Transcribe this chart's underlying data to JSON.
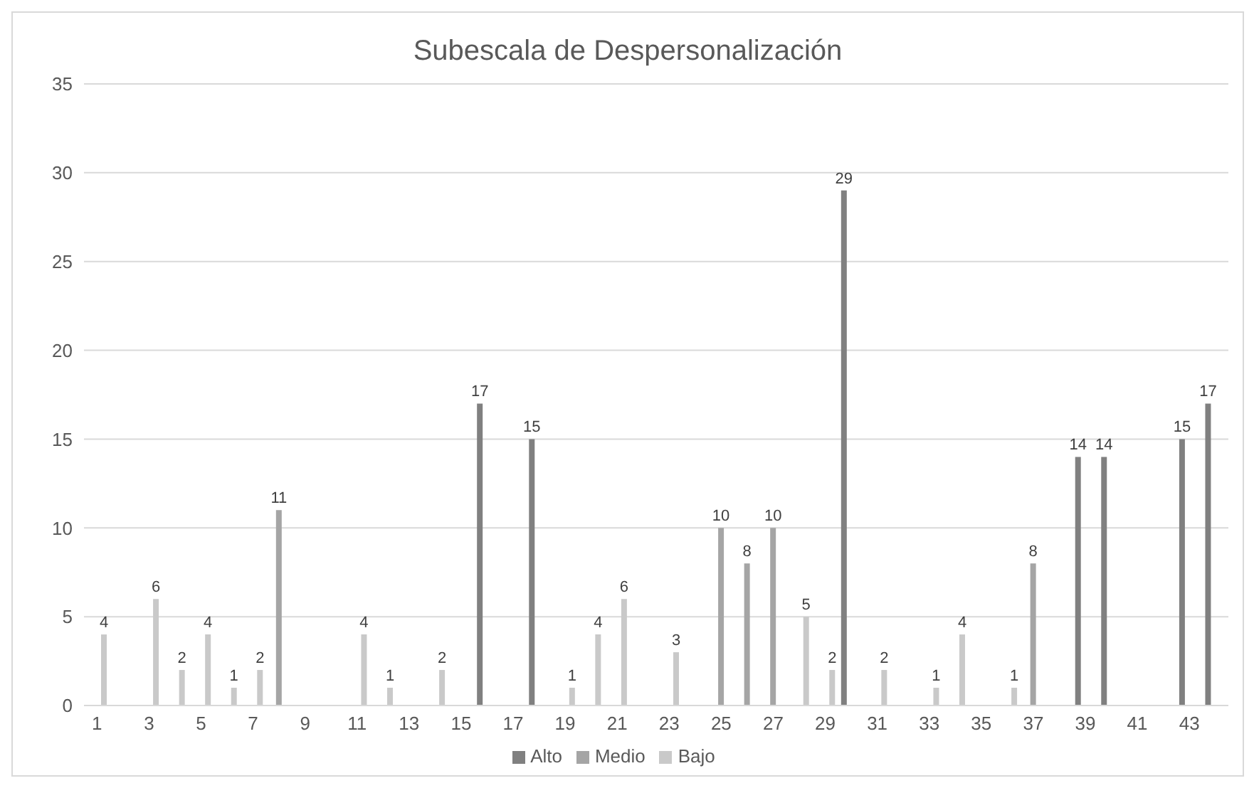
{
  "chart_data": {
    "type": "bar",
    "title": "Subescala de Despersonalización",
    "x": [
      1,
      2,
      3,
      4,
      5,
      6,
      7,
      8,
      9,
      10,
      11,
      12,
      13,
      14,
      15,
      16,
      17,
      18,
      19,
      20,
      21,
      22,
      23,
      24,
      25,
      26,
      27,
      28,
      29,
      30,
      31,
      32,
      33,
      34,
      35,
      36,
      37,
      38,
      39,
      40,
      41,
      42,
      43,
      44
    ],
    "xlim": [
      0.5,
      44.5
    ],
    "xticks": [
      1,
      3,
      5,
      7,
      9,
      11,
      13,
      15,
      17,
      19,
      21,
      23,
      25,
      27,
      29,
      31,
      33,
      35,
      37,
      39,
      41,
      43
    ],
    "series": [
      {
        "name": "Alto",
        "color": "#808080",
        "values": [
          null,
          null,
          null,
          null,
          null,
          null,
          null,
          null,
          null,
          null,
          null,
          null,
          null,
          null,
          null,
          17,
          null,
          15,
          null,
          null,
          null,
          null,
          null,
          null,
          null,
          null,
          null,
          null,
          null,
          29,
          null,
          null,
          null,
          null,
          null,
          null,
          null,
          null,
          14,
          14,
          null,
          null,
          15,
          17
        ]
      },
      {
        "name": "Medio",
        "color": "#a5a5a5",
        "values": [
          null,
          null,
          null,
          null,
          null,
          null,
          null,
          11,
          null,
          null,
          null,
          null,
          null,
          null,
          null,
          null,
          null,
          null,
          null,
          null,
          null,
          null,
          null,
          null,
          10,
          8,
          10,
          null,
          null,
          null,
          null,
          null,
          null,
          null,
          null,
          null,
          8,
          null,
          null,
          null,
          null,
          null,
          null,
          null
        ]
      },
      {
        "name": "Bajo",
        "color": "#c9c9c9",
        "values": [
          4,
          null,
          6,
          2,
          4,
          1,
          2,
          null,
          null,
          null,
          4,
          1,
          null,
          2,
          null,
          null,
          null,
          null,
          1,
          4,
          6,
          null,
          3,
          null,
          null,
          null,
          null,
          5,
          2,
          null,
          2,
          null,
          1,
          4,
          null,
          1,
          null,
          null,
          null,
          null,
          null,
          null,
          null,
          null
        ]
      }
    ],
    "ylim": [
      0,
      35
    ],
    "yticks": [
      0,
      5,
      10,
      15,
      20,
      25,
      30,
      35
    ],
    "grid": "y",
    "legend": "bottom",
    "data_labels": true
  }
}
